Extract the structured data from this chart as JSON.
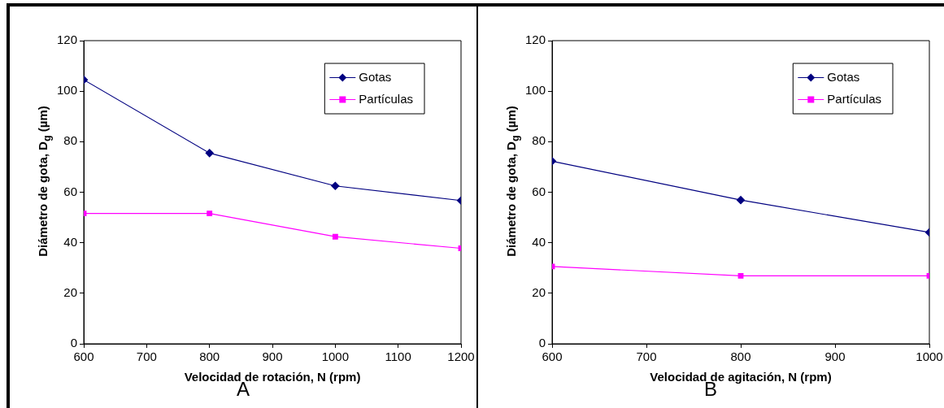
{
  "chart_data": [
    {
      "type": "line",
      "xlabel": "Velocidad de rotación, N (rpm)",
      "ylabel": "Diámetro de gota, D$_{g}$ (µm)",
      "annotations": [
        "A"
      ],
      "x": [
        600,
        800,
        1000,
        1200
      ],
      "xlim": [
        600,
        1200
      ],
      "xticks": [
        600,
        700,
        800,
        900,
        1000,
        1100,
        1200
      ],
      "ylim": [
        0,
        120
      ],
      "yticks": [
        0,
        20,
        40,
        60,
        80,
        100,
        120
      ],
      "grid": false,
      "legend": "top right",
      "series": [
        {
          "name": "Gotas",
          "color": "#000080",
          "marker": "diamond",
          "values": [
            104.5,
            75.5,
            62.5,
            56.7
          ]
        },
        {
          "name": "Partículas",
          "color": "#ff00ff",
          "marker": "square",
          "values": [
            51.6,
            51.6,
            42.4,
            37.8
          ]
        }
      ]
    },
    {
      "type": "line",
      "xlabel": "Velocidad de agitación, N (rpm)",
      "ylabel": "Diámetro de gota, D$_{g}$ (µm)",
      "annotations": [
        "B"
      ],
      "x": [
        600,
        800,
        1000
      ],
      "xlim": [
        600,
        1000
      ],
      "xticks": [
        600,
        700,
        800,
        900,
        1000
      ],
      "ylim": [
        0,
        120
      ],
      "yticks": [
        0,
        20,
        40,
        60,
        80,
        100,
        120
      ],
      "grid": false,
      "legend": "top right",
      "series": [
        {
          "name": "Gotas",
          "color": "#000080",
          "marker": "diamond",
          "values": [
            72.3,
            56.9,
            44.1
          ]
        },
        {
          "name": "Partículas",
          "color": "#ff00ff",
          "marker": "square",
          "values": [
            30.6,
            26.9,
            26.9
          ]
        }
      ]
    }
  ]
}
